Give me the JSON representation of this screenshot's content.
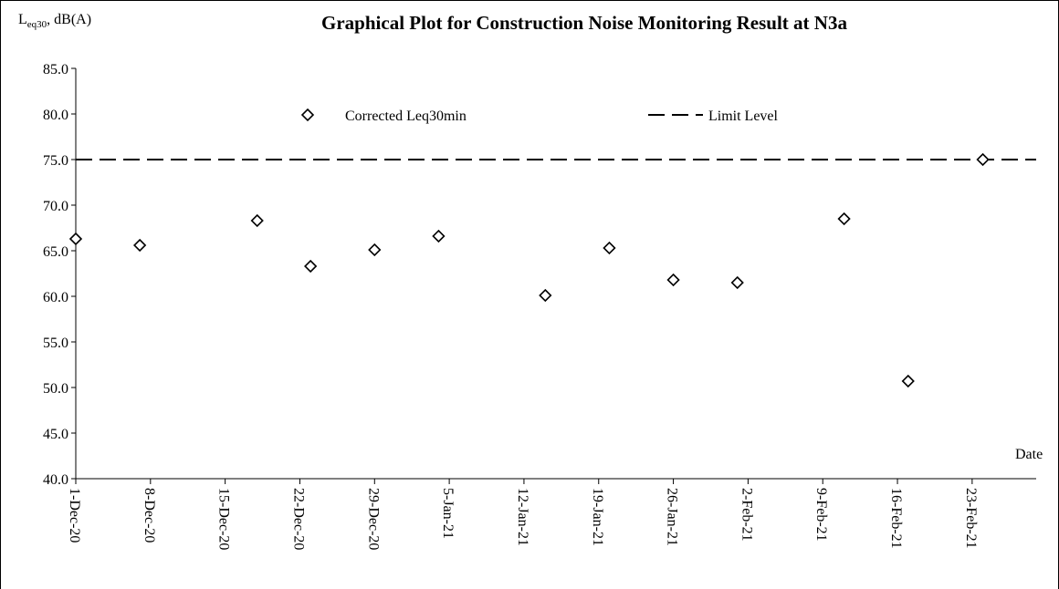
{
  "chart_data": {
    "type": "scatter",
    "title": "Graphical Plot for Construction Noise Monitoring Result at N3a",
    "y_label": {
      "main": "L",
      "sub": "eq30",
      "rest": ", dB(A)"
    },
    "x_label": "Date",
    "series": [
      {
        "name": "Corrected Leq30min",
        "color": "#000000",
        "x": [
          "2020-12-01",
          "2020-12-07",
          "2020-12-18",
          "2020-12-23",
          "2020-12-29",
          "2021-01-04",
          "2021-01-14",
          "2021-01-20",
          "2021-01-26",
          "2021-02-01",
          "2021-02-11",
          "2021-02-17",
          "2021-02-24"
        ],
        "values": [
          66.3,
          65.6,
          68.3,
          63.3,
          65.1,
          66.6,
          60.1,
          65.3,
          61.8,
          61.5,
          68.5,
          50.7,
          75.0
        ]
      }
    ],
    "reference_lines": [
      {
        "name": "Limit Level",
        "value": 75,
        "color": "#000000"
      }
    ],
    "xlim": [
      "2020-12-01",
      "2021-03-01"
    ],
    "xticks": [
      {
        "value": "2020-12-01",
        "label": "1-Dec-20"
      },
      {
        "value": "2020-12-08",
        "label": "8-Dec-20"
      },
      {
        "value": "2020-12-15",
        "label": "15-Dec-20"
      },
      {
        "value": "2020-12-22",
        "label": "22-Dec-20"
      },
      {
        "value": "2020-12-29",
        "label": "29-Dec-20"
      },
      {
        "value": "2021-01-05",
        "label": "5-Jan-21"
      },
      {
        "value": "2021-01-12",
        "label": "12-Jan-21"
      },
      {
        "value": "2021-01-19",
        "label": "19-Jan-21"
      },
      {
        "value": "2021-01-26",
        "label": "26-Jan-21"
      },
      {
        "value": "2021-02-02",
        "label": "2-Feb-21"
      },
      {
        "value": "2021-02-09",
        "label": "9-Feb-21"
      },
      {
        "value": "2021-02-16",
        "label": "16-Feb-21"
      },
      {
        "value": "2021-02-23",
        "label": "23-Feb-21"
      }
    ],
    "ylim": [
      40,
      85
    ],
    "yticks": [
      {
        "value": 40,
        "label": "40.0"
      },
      {
        "value": 45,
        "label": "45.0"
      },
      {
        "value": 50,
        "label": "50.0"
      },
      {
        "value": 55,
        "label": "55.0"
      },
      {
        "value": 60,
        "label": "60.0"
      },
      {
        "value": 65,
        "label": "65.0"
      },
      {
        "value": 70,
        "label": "70.0"
      },
      {
        "value": 75,
        "label": "75.0"
      },
      {
        "value": 80,
        "label": "80.0"
      },
      {
        "value": 85,
        "label": "85.0"
      }
    ],
    "grid": false
  }
}
